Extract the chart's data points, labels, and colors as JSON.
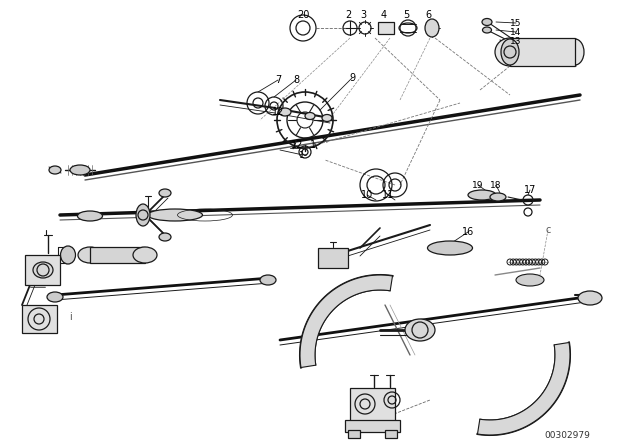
{
  "background_color": "#ffffff",
  "line_color": "#1a1a1a",
  "line_width": 0.9,
  "text_color": "#000000",
  "watermark": "00302979",
  "fig_width": 6.4,
  "fig_height": 4.48,
  "dpi": 100
}
